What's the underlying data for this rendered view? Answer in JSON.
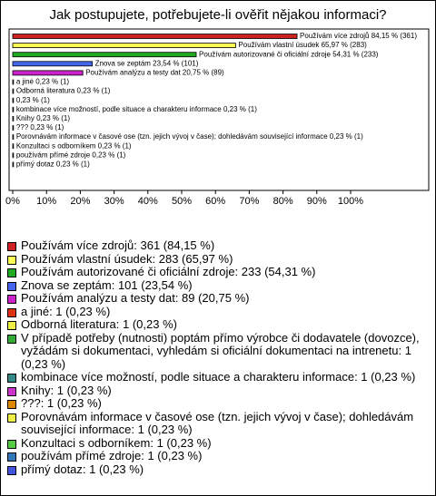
{
  "chart_data": {
    "type": "bar",
    "orientation": "horizontal",
    "title": "Jak postupujete, potřebujete-li ověřit nějakou informaci?",
    "values": [
      84.15,
      65.97,
      54.31,
      23.54,
      20.75,
      0.23,
      0.23,
      0.23,
      0.23,
      0.23,
      0.23,
      0.23,
      0.23,
      0.23,
      0.23
    ],
    "value_labels": [
      "Používám více zdrojů 84,15 % (361)",
      "Používám vlastní úsudek 65,97 % (283)",
      "Používám autorizované či oficiální zdroje 54,31 % (233)",
      "Znova se zeptám 23,54 % (101)",
      "Používám analýzu a testy dat 20,75 % (89)",
      "a jiné 0,23 % (1)",
      "Odborná literatura 0,23 % (1)",
      "0,23 % (1)",
      "kombinace více možností, podle situace a charakteru informace 0,23 % (1)",
      "Knihy 0,23 % (1)",
      "??? 0,23 % (1)",
      "Porovnávám informace v časové ose (tzn. jejich vývoj v čase); dohledávám související informace 0,23 % (1)",
      "Konzultaci s odborníkem 0,23 % (1)",
      "používám přímé zdroje 0,23 % (1)",
      "přímý dotaz 0,23 % (1)"
    ],
    "legend_labels": [
      "Používám více zdrojů: 361 (84,15 %)",
      "Používám vlastní úsudek: 283 (65,97 %)",
      "Používám autorizované či oficiální zdroje: 233 (54,31 %)",
      "Znova se zeptám: 101 (23,54 %)",
      "Používám analýzu a testy dat: 89 (20,75 %)",
      "a jiné: 1 (0,23 %)",
      "Odborná literatura: 1 (0,23 %)",
      "V případě potřeby (nutnosti) poptám přímo výrobce či dodavatele (dovozce), vyžádám si dokumentaci, vyhledám si oficiální dokumentaci na intrenetu: 1 (0,23 %)",
      "kombinace více možností, podle situace a charakteru informace: 1 (0,23 %)",
      "Knihy: 1 (0,23 %)",
      "???: 1 (0,23 %)",
      "Porovnávám informace v časové ose (tzn. jejich vývoj v čase); dohledávám související informace: 1 (0,23 %)",
      "Konzultaci s odborníkem: 1 (0,23 %)",
      "používám přímé zdroje: 1 (0,23 %)",
      "přímý dotaz: 1 (0,23 %)"
    ],
    "colors": [
      "#cc2222",
      "#ffff55",
      "#22aa22",
      "#4466ee",
      "#cc22cc",
      "#dd3311",
      "#eeee44",
      "#33aa33",
      "#338888",
      "#cc33cc",
      "#dd8800",
      "#eeee44",
      "#55cc44",
      "#3377bb",
      "#4455dd"
    ],
    "xlim": [
      0,
      100
    ],
    "xticks": [
      {
        "value": 0,
        "label": "0%"
      },
      {
        "value": 10,
        "label": "10%"
      },
      {
        "value": 20,
        "label": "20%"
      },
      {
        "value": 30,
        "label": "30%"
      },
      {
        "value": 40,
        "label": "40%"
      },
      {
        "value": 50,
        "label": "50%"
      },
      {
        "value": 60,
        "label": "60%"
      },
      {
        "value": 70,
        "label": "70%"
      },
      {
        "value": 80,
        "label": "80%"
      },
      {
        "value": 90,
        "label": "90%"
      },
      {
        "value": 100,
        "label": "100%"
      }
    ],
    "grid": false
  }
}
